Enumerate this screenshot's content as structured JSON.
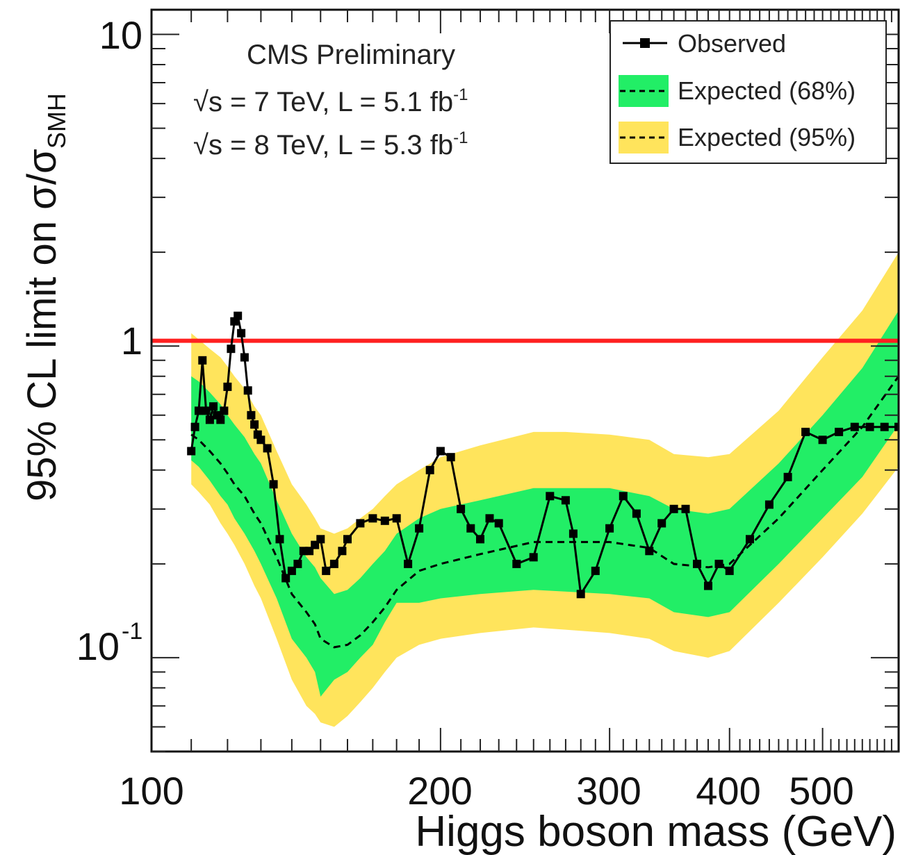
{
  "chart_data": {
    "type": "line",
    "xlabel": "Higgs boson mass (GeV)",
    "ylabel_main": "95% CL limit on σ/σ",
    "ylabel_sub": "SMH",
    "x_scale": "log",
    "y_scale": "log",
    "xlim": [
      100,
      600
    ],
    "ylim": [
      0.05,
      12
    ],
    "x_ticks": [
      {
        "value": 100,
        "label": "100"
      },
      {
        "value": 200,
        "label": "200"
      },
      {
        "value": 300,
        "label": "300"
      },
      {
        "value": 400,
        "label": "400"
      },
      {
        "value": 500,
        "label": "500"
      }
    ],
    "y_ticks": [
      {
        "value": 10,
        "label": "10",
        "sup": ""
      },
      {
        "value": 1,
        "label": "1",
        "sup": ""
      },
      {
        "value": 0.1,
        "label": "10",
        "sup": "-1"
      }
    ],
    "annotations": {
      "experiment": "CMS Preliminary",
      "line1": {
        "main": "√s = 7 TeV, L = 5.1 fb",
        "sup": "-1"
      },
      "line2": {
        "main": "√s = 8 TeV, L = 5.3 fb",
        "sup": "-1"
      }
    },
    "reference_line": {
      "y": 1.04,
      "color": "#ff2020"
    },
    "colors": {
      "band68": "#22ee66",
      "band95": "#ffe45c",
      "observed": "#000000",
      "expected": "#000000"
    },
    "legend": {
      "placement": "top-right",
      "entries": [
        {
          "label": "Observed",
          "style": "observed"
        },
        {
          "label": "Expected (68%)",
          "style": "band68"
        },
        {
          "label": "Expected (95%)",
          "style": "band95"
        }
      ]
    },
    "expected_x": [
      110,
      112,
      115,
      118,
      120,
      122,
      125,
      128,
      130,
      135,
      140,
      145,
      148,
      150,
      155,
      160,
      165,
      170,
      175,
      180,
      190,
      200,
      220,
      250,
      270,
      300,
      330,
      350,
      380,
      400,
      450,
      500,
      550,
      600
    ],
    "expected": [
      0.52,
      0.5,
      0.46,
      0.42,
      0.39,
      0.36,
      0.33,
      0.29,
      0.27,
      0.21,
      0.16,
      0.14,
      0.128,
      0.115,
      0.108,
      0.11,
      0.118,
      0.13,
      0.145,
      0.165,
      0.19,
      0.2,
      0.215,
      0.235,
      0.235,
      0.235,
      0.225,
      0.2,
      0.195,
      0.2,
      0.28,
      0.4,
      0.55,
      0.8
    ],
    "band68_low": [
      0.43,
      0.41,
      0.37,
      0.33,
      0.31,
      0.28,
      0.25,
      0.22,
      0.2,
      0.155,
      0.115,
      0.1,
      0.09,
      0.075,
      0.085,
      0.09,
      0.1,
      0.11,
      0.13,
      0.15,
      0.15,
      0.155,
      0.16,
      0.165,
      0.163,
      0.16,
      0.155,
      0.14,
      0.135,
      0.14,
      0.2,
      0.28,
      0.38,
      0.56
    ],
    "band68_high": [
      0.8,
      0.77,
      0.71,
      0.65,
      0.6,
      0.56,
      0.51,
      0.45,
      0.42,
      0.32,
      0.25,
      0.21,
      0.195,
      0.18,
      0.16,
      0.165,
      0.18,
      0.2,
      0.22,
      0.25,
      0.28,
      0.3,
      0.32,
      0.35,
      0.35,
      0.35,
      0.33,
      0.3,
      0.29,
      0.3,
      0.42,
      0.6,
      0.85,
      1.3
    ],
    "band95_low": [
      0.36,
      0.34,
      0.31,
      0.27,
      0.25,
      0.23,
      0.2,
      0.17,
      0.155,
      0.115,
      0.085,
      0.07,
      0.066,
      0.062,
      0.06,
      0.065,
      0.072,
      0.08,
      0.09,
      0.1,
      0.11,
      0.115,
      0.12,
      0.125,
      0.123,
      0.12,
      0.115,
      0.105,
      0.1,
      0.105,
      0.15,
      0.21,
      0.29,
      0.41
    ],
    "band95_high": [
      1.1,
      1.05,
      0.98,
      0.92,
      0.86,
      0.8,
      0.73,
      0.64,
      0.6,
      0.46,
      0.36,
      0.31,
      0.28,
      0.26,
      0.25,
      0.26,
      0.28,
      0.3,
      0.33,
      0.36,
      0.4,
      0.44,
      0.48,
      0.53,
      0.53,
      0.52,
      0.5,
      0.45,
      0.44,
      0.45,
      0.62,
      0.92,
      1.3,
      2.0
    ],
    "observed_x": [
      110,
      111,
      112,
      113,
      114,
      115,
      116,
      117,
      118,
      119,
      120,
      121,
      122,
      123,
      124,
      125,
      126,
      127,
      128,
      129,
      130,
      132,
      134,
      136,
      138,
      140,
      142,
      144,
      146,
      148,
      150,
      152,
      155,
      158,
      160,
      165,
      170,
      175,
      180,
      185,
      190,
      195,
      200,
      205,
      210,
      215,
      220,
      225,
      230,
      240,
      250,
      260,
      270,
      275,
      280,
      290,
      300,
      310,
      320,
      330,
      340,
      350,
      360,
      370,
      380,
      390,
      400,
      420,
      440,
      460,
      480,
      500,
      520,
      540,
      560,
      580,
      600
    ],
    "observed": [
      0.46,
      0.55,
      0.62,
      0.9,
      0.62,
      0.58,
      0.64,
      0.6,
      0.58,
      0.62,
      0.74,
      0.98,
      1.2,
      1.25,
      1.1,
      0.92,
      0.72,
      0.6,
      0.56,
      0.52,
      0.5,
      0.47,
      0.36,
      0.24,
      0.18,
      0.19,
      0.2,
      0.22,
      0.22,
      0.23,
      0.24,
      0.19,
      0.2,
      0.22,
      0.24,
      0.27,
      0.28,
      0.275,
      0.28,
      0.2,
      0.26,
      0.4,
      0.46,
      0.44,
      0.3,
      0.26,
      0.24,
      0.28,
      0.27,
      0.2,
      0.21,
      0.33,
      0.32,
      0.25,
      0.16,
      0.19,
      0.26,
      0.33,
      0.29,
      0.22,
      0.27,
      0.3,
      0.3,
      0.2,
      0.17,
      0.2,
      0.19,
      0.24,
      0.31,
      0.38,
      0.53,
      0.5,
      0.53,
      0.55,
      0.55,
      0.55,
      0.55
    ]
  }
}
